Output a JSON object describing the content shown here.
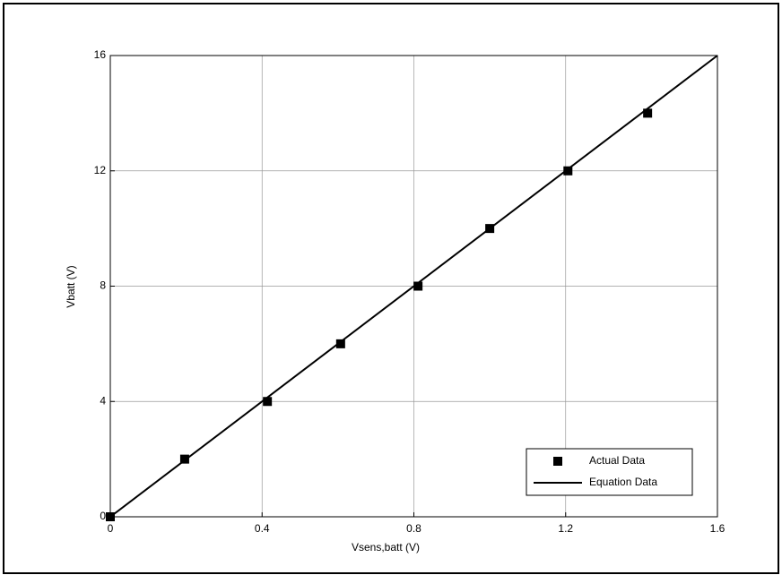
{
  "chart_data": {
    "type": "scatter",
    "x_label": "Vsens,batt (V)",
    "y_label": "Vbatt (V)",
    "xlim": [
      0,
      1.6
    ],
    "xticks": [
      0,
      0.4,
      0.8,
      1.2,
      1.6
    ],
    "ylim": [
      0,
      16
    ],
    "yticks": [
      0,
      4,
      8,
      12,
      16
    ],
    "grid": true,
    "legend": "lower right",
    "series": [
      {
        "name": "Actual Data",
        "color": "#000000",
        "mode": "markers",
        "x": [
          0,
          0.196,
          0.414,
          0.607,
          0.811,
          1.0,
          1.206,
          1.416
        ],
        "values": [
          0,
          2,
          4,
          6,
          8,
          10,
          12,
          14
        ]
      },
      {
        "name": "Equation Data",
        "color": "#000000",
        "mode": "line",
        "x": [
          0,
          1.6
        ],
        "values": [
          0,
          16
        ]
      }
    ]
  }
}
